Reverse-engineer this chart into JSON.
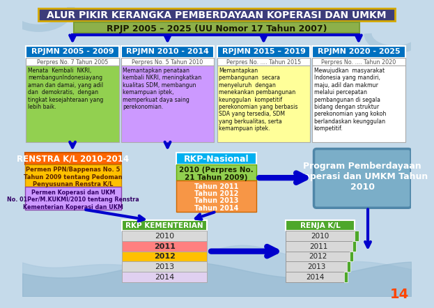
{
  "title": "ALUR PIKIR KERANGKA PEMBERDAYAAN KOPERASI DAN UMKM",
  "subtitle": "RPJP 2005 – 2025 (UU Nomor 17 Tahun 2007)",
  "bg_color": "#c5daea",
  "title_bg": "#3d3d7a",
  "title_ec": "#d4a800",
  "subtitle_bg": "#8db04a",
  "rpjmn_headers": [
    "RPJMN 2005 - 2009",
    "RPJMN 2010 - 2014",
    "RPJMN 2015 – 2019",
    "RPJMN 2020 - 2025"
  ],
  "rpjmn_hdr_color": "#0070c0",
  "rpjmn_hdr_colors": [
    "#0070c0",
    "#0070c0",
    "#0070c0",
    "#0070c0"
  ],
  "perpres": [
    "Perpres No. 7 Tahun 2005",
    "Perpres No. 5 Tahun 2010",
    "Perpres No. .... Tahun 2015",
    "Perpres No. .... Tahun 2020"
  ],
  "content_colors": [
    "#92d050",
    "#cc99ff",
    "#ffff99",
    "#ffffff"
  ],
  "contents": [
    "Menata  Kembali  NKRI,\nmembangunIndonesiayang\naman dan damai, yang adil\ndan  demokratis,  dengan\ntingkat kesejahteraan yang\nlebih baik.",
    "Memantapkan penataan\nkembali NKRI, meningkatkan\nkualitas SDM, membangun\nkemampuan iptek,\nmemperkuat daya saing\nperekonomian.",
    "Memantapkan\npembangunan  secara\nmenyeluruh  dengan\nmenekankan pembangunan\nkeunggulan  kompetitif\nperekonomian yang berbasis\nSDA yang tersedia, SDM\nyang berkualitas, serta\nkemampuan iptek.",
    "Mewujudkan  masyarakat\nIndonesia yang mandiri,\nmaju, adil dan makmur\nmelalui percepatan\npembangunan di segala\nbidang dengan struktur\nperekonomian yang kokoh\nberlandaskan keunggulan\nkompetitif."
  ],
  "renstra_title": "RENSTRA K/L 2010-2014",
  "renstra_color": "#ff6600",
  "renstra_sub1_color": "#ffc000",
  "renstra_sub1": "Permen PPN/Bappenas No. 5\nTahun 2009 tentang Pedoman\nPenyusunan Renstra K/L",
  "renstra_sub2_color": "#cc99ff",
  "renstra_sub2": "Permen Koperasi dan UKM\nNo. 01Per/M.KUKMI/2010 tentang Renstra\nKementerian Koperasi dan UKM",
  "rkp_title": "RKP-Nasional",
  "rkp_color": "#00b0f0",
  "rkp_2010_color": "#92d050",
  "rkp_2010": "2010 (Perpres No.\n21 Tahun 2009)",
  "rkp_years_color": "#f79646",
  "rkp_years": [
    "Tahun 2011",
    "Tahun 2012",
    "Tahun 2013",
    "Tahun 2014"
  ],
  "program_title": "Program Pemberdayaan\nKoperasi dan UMKM Tahun\n2010",
  "program_color": "#7baec8",
  "program_ec": "#4f86a8",
  "rkpk_title": "RKP KEMENTERIAN",
  "rkpk_header_color": "#4ea72a",
  "rkpk_years": [
    "2010",
    "2011",
    "2012",
    "2013",
    "2014"
  ],
  "rkpk_colors": [
    "#d9d9d9",
    "#ff8080",
    "#ffc000",
    "#d9d9d9",
    "#e0d0f0"
  ],
  "renja_title": "RENJA K/L",
  "renja_header_color": "#4ea72a",
  "renja_years": [
    "2010",
    "2011",
    "2012",
    "2013",
    "2014"
  ],
  "renja_accent": "#4ea72a",
  "arrow_color": "#0000cc",
  "page_num": "14",
  "page_num_color": "#ff4500"
}
